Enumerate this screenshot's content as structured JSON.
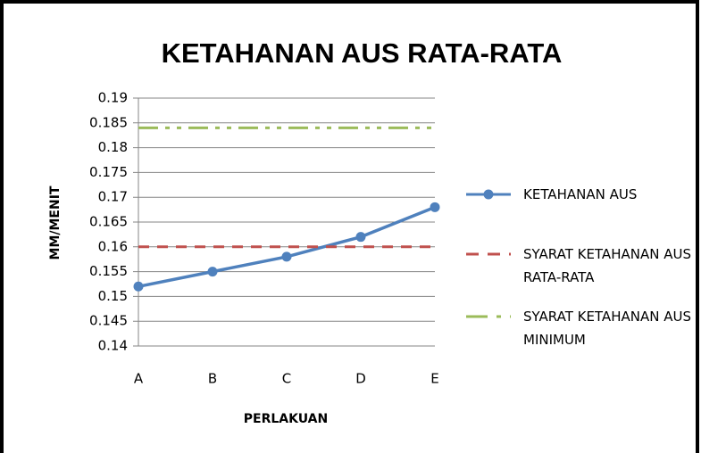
{
  "chart_data": {
    "type": "line",
    "title": "KETAHANAN AUS RATA-RATA",
    "x_label": "PERLAKUAN",
    "y_label": "MM/MENIT",
    "categories": [
      "A",
      "B",
      "C",
      "D",
      "E"
    ],
    "series": [
      {
        "name": "KETAHANAN AUS",
        "color": "#4f81bd",
        "style": "solid",
        "markers": true,
        "values": [
          0.152,
          0.155,
          0.158,
          0.162,
          0.168
        ]
      },
      {
        "name": "SYARAT KETAHANAN AUS RATA-RATA",
        "color": "#c0504d",
        "style": "dash",
        "markers": false,
        "values": [
          0.16,
          0.16,
          0.16,
          0.16,
          0.16
        ]
      },
      {
        "name": "SYARAT KETAHANAN AUS MINIMUM",
        "color": "#9bbb59",
        "style": "dash-dot-dot",
        "markers": false,
        "values": [
          0.184,
          0.184,
          0.184,
          0.184,
          0.184
        ]
      }
    ],
    "ylim": [
      0.14,
      0.19
    ],
    "yticks": [
      0.14,
      0.145,
      0.15,
      0.155,
      0.16,
      0.165,
      0.17,
      0.175,
      0.18,
      0.185,
      0.19
    ],
    "grid": true,
    "legend": "right"
  }
}
